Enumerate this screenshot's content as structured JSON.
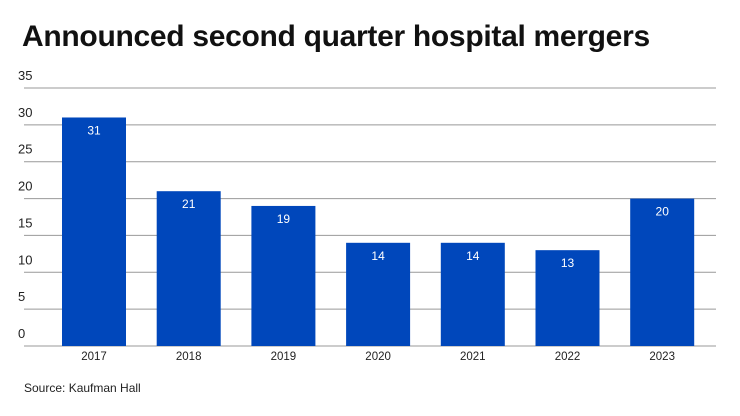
{
  "chart_data": {
    "type": "bar",
    "title": "Announced second quarter hospital mergers",
    "categories": [
      "2017",
      "2018",
      "2019",
      "2020",
      "2021",
      "2022",
      "2023"
    ],
    "values": [
      31,
      21,
      19,
      14,
      14,
      13,
      20
    ],
    "xlabel": "",
    "ylabel": "",
    "ylim": [
      0,
      35
    ],
    "yticks": [
      0,
      5,
      10,
      15,
      20,
      25,
      30,
      35
    ],
    "grid": true,
    "data_labels": true,
    "bar_color": "#0047BB",
    "source": "Source: Kaufman Hall"
  }
}
